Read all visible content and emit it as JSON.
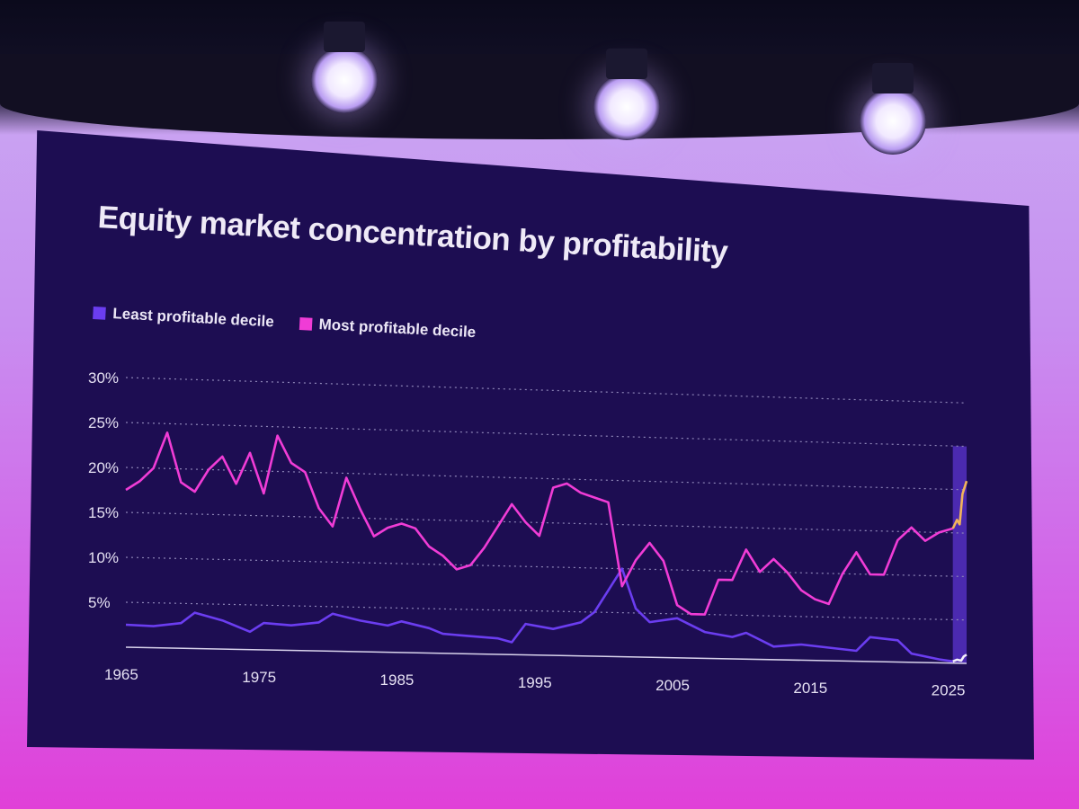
{
  "chart_data": {
    "type": "line",
    "title": "Equity market concentration by profitability",
    "xlabel": "",
    "ylabel": "",
    "x_ticks": [
      "1965",
      "1975",
      "1985",
      "1995",
      "2005",
      "2015",
      "2025"
    ],
    "y_ticks": [
      "5%",
      "10%",
      "15%",
      "20%",
      "25%",
      "30%"
    ],
    "xlim": [
      1965,
      2026
    ],
    "ylim": [
      0,
      30
    ],
    "grid": true,
    "legend_position": "top-left",
    "highlight_range": [
      2025,
      2026
    ],
    "series": [
      {
        "name": "Least profitable decile",
        "color": "#6b3df0",
        "x": [
          1965,
          1967,
          1969,
          1970,
          1972,
          1974,
          1975,
          1977,
          1979,
          1980,
          1982,
          1984,
          1985,
          1987,
          1988,
          1990,
          1992,
          1993,
          1994,
          1996,
          1998,
          1999,
          2000,
          2001,
          2002,
          2003,
          2005,
          2007,
          2009,
          2010,
          2012,
          2014,
          2016,
          2018,
          2019,
          2021,
          2022,
          2024,
          2025
        ],
        "values": [
          2.5,
          2.4,
          2.8,
          4.0,
          3.2,
          2.0,
          3.0,
          2.8,
          3.2,
          4.2,
          3.5,
          3.0,
          3.5,
          2.8,
          2.2,
          2.0,
          1.8,
          1.4,
          3.5,
          3.0,
          3.8,
          5.0,
          7.5,
          10.0,
          5.5,
          4.0,
          4.5,
          3.0,
          2.5,
          3.0,
          1.5,
          1.8,
          1.5,
          1.2,
          2.8,
          2.5,
          1.0,
          0.4,
          0.2
        ]
      },
      {
        "name": "Most profitable decile",
        "color": "#f03cd6",
        "x": [
          1965,
          1966,
          1967,
          1968,
          1969,
          1970,
          1971,
          1972,
          1973,
          1974,
          1975,
          1976,
          1977,
          1978,
          1979,
          1980,
          1981,
          1982,
          1983,
          1984,
          1985,
          1986,
          1987,
          1988,
          1989,
          1990,
          1991,
          1992,
          1993,
          1994,
          1995,
          1996,
          1997,
          1998,
          1999,
          2000,
          2001,
          2002,
          2003,
          2004,
          2005,
          2006,
          2007,
          2008,
          2009,
          2010,
          2011,
          2012,
          2013,
          2014,
          2015,
          2016,
          2017,
          2018,
          2019,
          2020,
          2021,
          2022,
          2023,
          2024,
          2025
        ],
        "values": [
          17.5,
          18.5,
          20,
          24,
          18.5,
          17.5,
          20,
          21.5,
          18.5,
          22,
          17.5,
          24,
          21,
          20,
          16,
          14,
          19.5,
          16,
          13,
          14,
          14.5,
          14,
          12,
          11,
          9.5,
          10,
          12,
          14.5,
          17,
          15,
          13.5,
          19,
          19.5,
          18.5,
          18,
          17.5,
          8,
          11,
          13,
          11,
          6,
          5,
          5,
          9,
          9,
          12.5,
          10,
          11.5,
          10,
          8,
          7,
          6.5,
          10,
          12.5,
          10,
          10,
          14,
          15.5,
          14,
          15,
          15.5
        ]
      },
      {
        "name": "",
        "color": "#f2b45a",
        "x": [
          2025,
          2025.3,
          2025.5,
          2025.7,
          2026
        ],
        "values": [
          15.5,
          16.5,
          16,
          19.5,
          21
        ]
      },
      {
        "name": "",
        "color": "#f4f1fb",
        "x": [
          2025,
          2025.3,
          2025.6,
          2025.8,
          2026
        ],
        "values": [
          0.2,
          0.4,
          0.3,
          0.8,
          1.0
        ]
      }
    ]
  },
  "legend": {
    "least_label": "Least profitable decile",
    "most_label": "Most profitable decile",
    "least_color": "#6b3df0",
    "most_color": "#f03cd6"
  }
}
